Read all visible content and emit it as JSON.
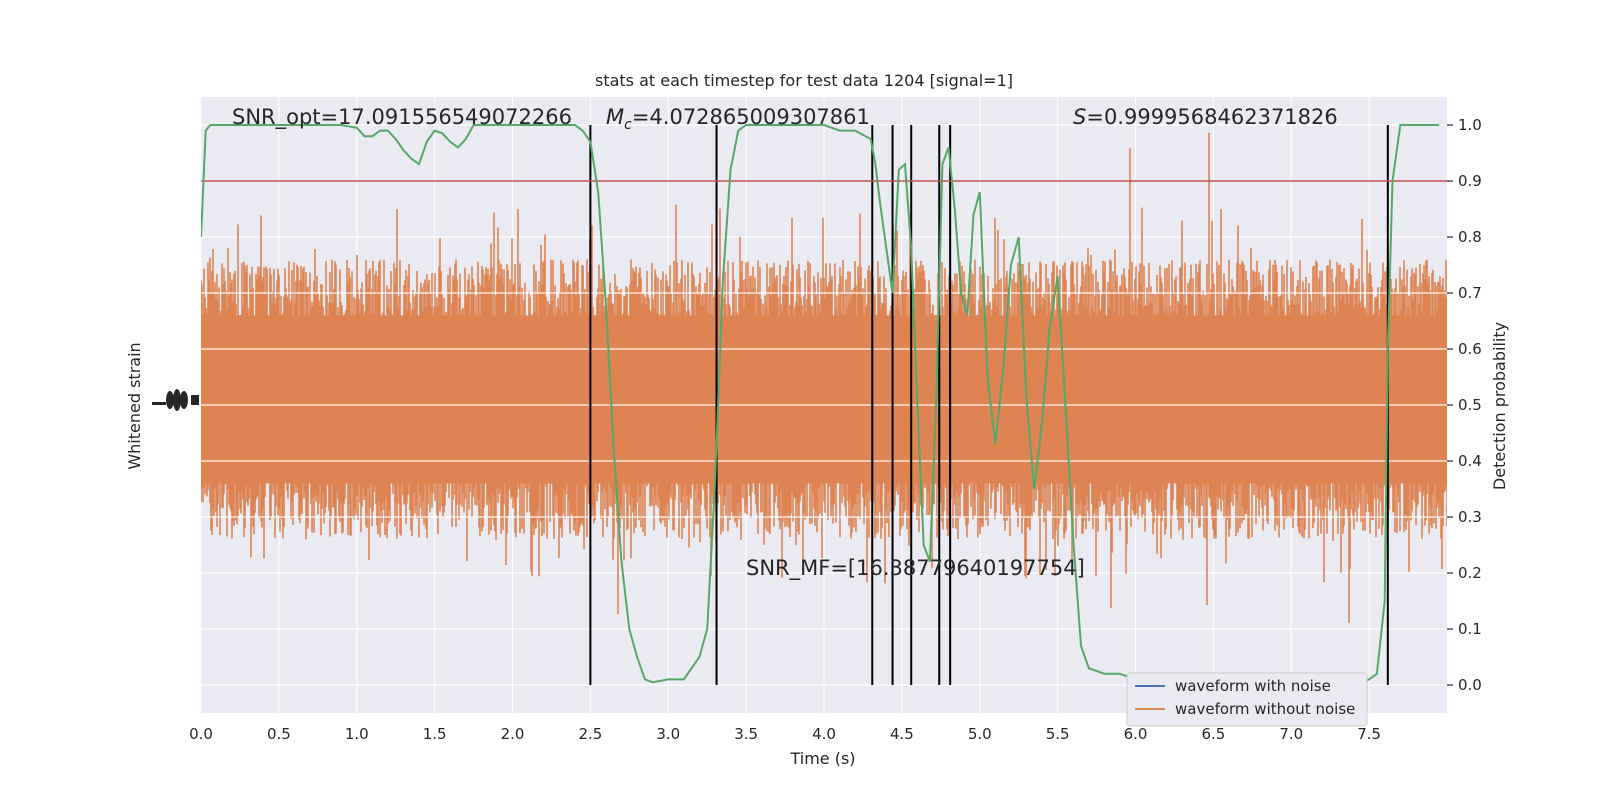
{
  "chart_data": {
    "type": "line",
    "title": "stats at each timestep for test data 1204 [signal=1]",
    "xlabel": "Time (s)",
    "ylabel_left": "Whitened strain",
    "ylabel_right": "Detection probability",
    "xlim": [
      0.0,
      8.0
    ],
    "ylim_right": [
      -0.05,
      1.05
    ],
    "x_ticks": [
      "0.0",
      "0.5",
      "1.0",
      "1.5",
      "2.0",
      "2.5",
      "3.0",
      "3.5",
      "4.0",
      "4.5",
      "5.0",
      "5.5",
      "6.0",
      "6.5",
      "7.0",
      "7.5"
    ],
    "y_ticks_right": [
      "0.0",
      "0.1",
      "0.2",
      "0.3",
      "0.4",
      "0.5",
      "0.6",
      "0.7",
      "0.8",
      "0.9",
      "1.0"
    ],
    "grid": true,
    "legend_position": "lower-right",
    "annotations": {
      "snr_opt": "SNR_opt=17.091556549072266",
      "mc_symbol": "M",
      "mc_sub": "c",
      "mc_value": "=4.072865009307861",
      "s_symbol": "S",
      "s_value": "=0.9999568462371826",
      "snr_mf": "SNR_MF=[16.38779640197754]"
    },
    "threshold": 0.9,
    "vertical_lines_x": [
      2.5,
      3.31,
      4.31,
      4.44,
      4.56,
      4.74,
      4.81,
      7.62
    ],
    "series": [
      {
        "name": "waveform with noise",
        "color": "#4c72b0",
        "values": []
      },
      {
        "name": "waveform without noise",
        "color": "#dd8452",
        "style": "dense noise band centred near probability 0.5, typical band 0.32-0.70, spikes reaching ~1.0 and ~0.0",
        "center": 0.5,
        "band_low": 0.32,
        "band_high": 0.7,
        "spike_max": 1.0,
        "spike_min": 0.0
      },
      {
        "name": "detection probability",
        "color": "#55a868",
        "x": [
          0.0,
          0.03,
          0.06,
          0.12,
          0.2,
          0.3,
          0.5,
          0.7,
          0.9,
          1.0,
          1.05,
          1.1,
          1.15,
          1.2,
          1.25,
          1.3,
          1.35,
          1.4,
          1.45,
          1.5,
          1.55,
          1.6,
          1.65,
          1.7,
          1.75,
          1.8,
          1.9,
          2.0,
          2.2,
          2.4,
          2.45,
          2.5,
          2.55,
          2.6,
          2.65,
          2.7,
          2.75,
          2.8,
          2.85,
          2.9,
          3.0,
          3.05,
          3.1,
          3.15,
          3.2,
          3.25,
          3.3,
          3.35,
          3.4,
          3.45,
          3.5,
          3.6,
          3.7,
          3.8,
          4.0,
          4.1,
          4.2,
          4.3,
          4.33,
          4.36,
          4.4,
          4.44,
          4.48,
          4.52,
          4.56,
          4.6,
          4.64,
          4.68,
          4.72,
          4.76,
          4.8,
          4.84,
          4.88,
          4.92,
          4.96,
          5.0,
          5.05,
          5.1,
          5.15,
          5.2,
          5.25,
          5.3,
          5.35,
          5.4,
          5.45,
          5.5,
          5.55,
          5.6,
          5.65,
          5.7,
          5.8,
          5.9,
          6.0,
          6.2,
          6.5,
          6.8,
          7.0,
          7.2,
          7.4,
          7.5,
          7.55,
          7.6,
          7.62,
          7.65,
          7.7,
          7.75,
          7.8,
          7.9,
          7.95
        ],
        "y": [
          0.8,
          0.99,
          1.0,
          1.0,
          1.0,
          1.0,
          1.0,
          1.0,
          1.0,
          0.995,
          0.98,
          0.98,
          0.99,
          0.99,
          0.975,
          0.955,
          0.94,
          0.93,
          0.97,
          0.99,
          0.985,
          0.97,
          0.96,
          0.975,
          1.0,
          1.0,
          1.0,
          1.0,
          1.0,
          1.0,
          0.99,
          0.97,
          0.88,
          0.68,
          0.42,
          0.22,
          0.1,
          0.05,
          0.01,
          0.005,
          0.01,
          0.01,
          0.01,
          0.03,
          0.05,
          0.1,
          0.36,
          0.72,
          0.92,
          0.99,
          1.0,
          1.0,
          1.0,
          1.0,
          1.0,
          0.99,
          0.99,
          0.975,
          0.93,
          0.86,
          0.78,
          0.7,
          0.92,
          0.93,
          0.78,
          0.5,
          0.25,
          0.22,
          0.5,
          0.93,
          0.96,
          0.85,
          0.7,
          0.66,
          0.84,
          0.88,
          0.55,
          0.43,
          0.56,
          0.75,
          0.8,
          0.51,
          0.35,
          0.47,
          0.64,
          0.73,
          0.5,
          0.26,
          0.07,
          0.03,
          0.02,
          0.02,
          0.01,
          0.0,
          0.0,
          0.0,
          0.0,
          0.0,
          0.0,
          0.01,
          0.02,
          0.15,
          0.6,
          0.9,
          1.0,
          1.0,
          1.0,
          1.0,
          1.0
        ]
      }
    ]
  },
  "colors": {
    "axes_bg": "#eaeaf2",
    "grid": "#ffffff",
    "threshold_line": "#c44e52",
    "vertical_lines": "#000000"
  }
}
